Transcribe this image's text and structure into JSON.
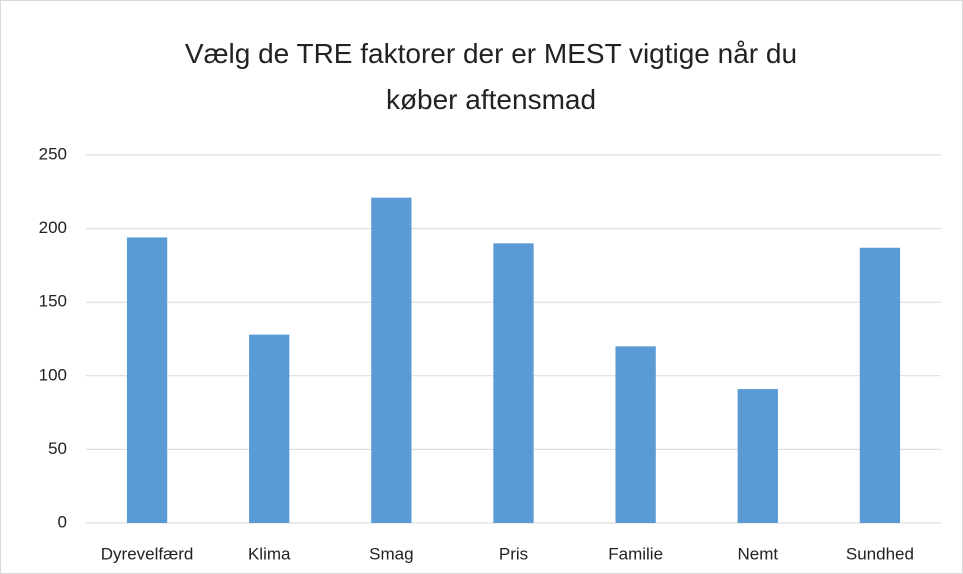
{
  "chart_data": {
    "type": "bar",
    "title": "Vælg de TRE faktorer der er MEST vigtige når du køber aftensmad",
    "categories": [
      "Dyrevelfærd",
      "Klima",
      "Smag",
      "Pris",
      "Familie",
      "Nemt",
      "Sundhed"
    ],
    "values": [
      194,
      128,
      221,
      190,
      120,
      91,
      187
    ],
    "color": "#5b9bd5",
    "ylim": [
      0,
      250
    ],
    "yticks": [
      0,
      50,
      100,
      150,
      200,
      250
    ],
    "grid": true
  }
}
